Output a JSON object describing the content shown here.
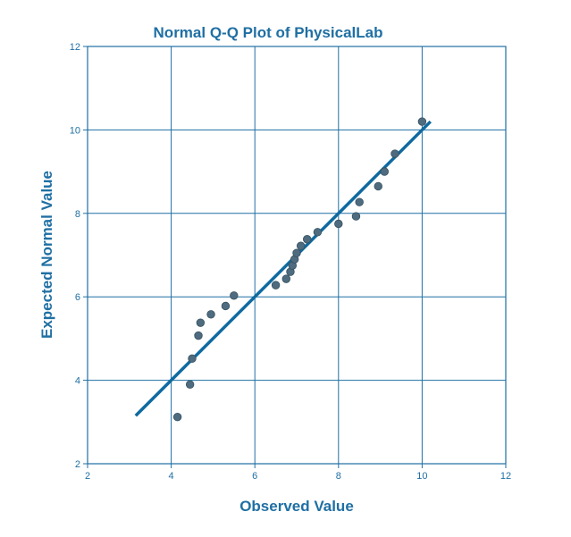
{
  "chart_data": {
    "type": "scatter",
    "title": "Normal Q-Q Plot of PhysicalLab",
    "xlabel": "Observed Value",
    "ylabel": "Expected Normal Value",
    "xlim": [
      2,
      12
    ],
    "ylim": [
      2,
      12
    ],
    "x_ticks": [
      2,
      4,
      6,
      8,
      10,
      12
    ],
    "y_ticks": [
      2,
      4,
      6,
      8,
      10,
      12
    ],
    "grid": true,
    "reference_line": {
      "x": [
        3.15,
        10.2
      ],
      "y": [
        3.15,
        10.2
      ]
    },
    "series": [
      {
        "points": [
          [
            4.15,
            3.12
          ],
          [
            4.45,
            3.9
          ],
          [
            4.5,
            4.52
          ],
          [
            4.65,
            5.07
          ],
          [
            4.7,
            5.38
          ],
          [
            4.95,
            5.58
          ],
          [
            5.3,
            5.78
          ],
          [
            5.5,
            6.03
          ],
          [
            6.5,
            6.28
          ],
          [
            6.75,
            6.43
          ],
          [
            6.85,
            6.6
          ],
          [
            6.9,
            6.75
          ],
          [
            6.95,
            6.9
          ],
          [
            7.0,
            7.05
          ],
          [
            7.1,
            7.22
          ],
          [
            7.25,
            7.38
          ],
          [
            7.5,
            7.55
          ],
          [
            8.0,
            7.75
          ],
          [
            8.42,
            7.93
          ],
          [
            8.5,
            8.27
          ],
          [
            8.95,
            8.65
          ],
          [
            9.1,
            9.0
          ],
          [
            9.35,
            9.43
          ],
          [
            10.0,
            10.2
          ]
        ]
      }
    ]
  },
  "colors": {
    "text": "#1f6fa3",
    "grid": "#1f6fa3",
    "line": "#0f6aa0",
    "point": "#4f6b7f",
    "point_stroke": "#35505f"
  }
}
